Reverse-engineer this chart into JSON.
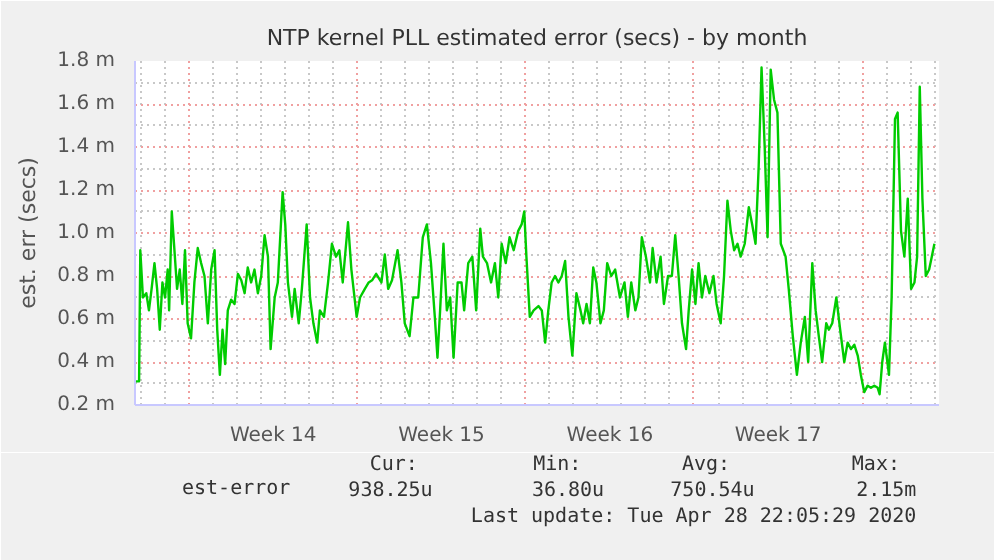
{
  "chart_data": {
    "type": "line",
    "title": "NTP kernel PLL estimated error (secs) - by month",
    "ylabel": "est. err (secs)",
    "xlim": [
      "2020-03-27T18:00",
      "2020-04-30T04:34"
    ],
    "ylim": [
      0.2,
      1.8
    ],
    "xticks": [
      {
        "value": "2020-03-30",
        "label": null
      },
      {
        "value": "2020-04-02T12:00",
        "label": "Week 14"
      },
      {
        "value": "2020-04-06",
        "label": null
      },
      {
        "value": "2020-04-09T12:00",
        "label": "Week 15"
      },
      {
        "value": "2020-04-13",
        "label": null
      },
      {
        "value": "2020-04-16T12:00",
        "label": "Week 16"
      },
      {
        "value": "2020-04-20",
        "label": null
      },
      {
        "value": "2020-04-23T12:00",
        "label": "Week 17"
      },
      {
        "value": "2020-04-27",
        "label": null
      }
    ],
    "yticks": [
      {
        "value": 0.2,
        "label": "0.2 m"
      },
      {
        "value": 0.4,
        "label": "0.4 m"
      },
      {
        "value": 0.6,
        "label": "0.6 m"
      },
      {
        "value": 0.8,
        "label": "0.8 m"
      },
      {
        "value": 1.0,
        "label": "1.0 m"
      },
      {
        "value": 1.2,
        "label": "1.2 m"
      },
      {
        "value": 1.4,
        "label": "1.4 m"
      },
      {
        "value": 1.6,
        "label": "1.6 m"
      },
      {
        "value": 1.8,
        "label": "1.8 m"
      }
    ],
    "grid": true,
    "legend": "bottom left",
    "marker": "none",
    "line_style": "solid",
    "annotations": [
      "Cur:",
      "Min:",
      "Avg:",
      "Max:",
      "938.25u",
      "36.80u",
      "750.54u",
      "2.15m",
      "Last update: Tue Apr 28 22:05:29 2020"
    ],
    "series": [
      {
        "name": "est-error",
        "color": "#00cc00",
        "x": [
          "2020-03-27T18:00",
          "2020-03-27T22:05",
          "2020-03-27T23:17",
          "2020-03-28T01:55",
          "2020-03-28T05:17",
          "2020-03-28T07:55",
          "2020-03-28T10:34",
          "2020-03-28T13:26",
          "2020-03-28T16:05",
          "2020-03-28T18:43",
          "2020-03-28T21:22",
          "2020-03-29T00:00",
          "2020-03-29T02:38",
          "2020-03-29T04:05",
          "2020-03-29T06:43",
          "2020-03-29T09:22",
          "2020-03-29T12:00",
          "2020-03-29T14:38",
          "2020-03-29T17:17",
          "2020-03-29T19:55",
          "2020-03-29T22:34",
          "2020-03-30T01:55",
          "2020-03-30T05:17",
          "2020-03-30T08:38",
          "2020-03-30T12:00",
          "2020-03-30T15:22",
          "2020-03-30T18:43",
          "2020-03-30T22:05",
          "2020-03-31T01:26",
          "2020-03-31T04:05",
          "2020-03-31T06:43",
          "2020-03-31T09:22",
          "2020-03-31T12:00",
          "2020-03-31T14:38",
          "2020-03-31T18:00",
          "2020-03-31T21:22",
          "2020-04-01T00:43",
          "2020-04-01T04:05",
          "2020-04-01T07:26",
          "2020-04-01T10:34",
          "2020-04-01T13:55",
          "2020-04-01T17:17",
          "2020-04-01T20:38",
          "2020-04-02T00:00",
          "2020-04-02T03:22",
          "2020-04-02T06:43",
          "2020-04-02T09:22",
          "2020-04-02T13:26",
          "2020-04-02T16:34",
          "2020-04-02T21:22",
          "2020-04-03T00:00",
          "2020-04-03T02:38",
          "2020-04-03T06:43",
          "2020-04-03T09:22",
          "2020-04-03T13:26",
          "2020-04-03T16:34",
          "2020-04-03T21:22",
          "2020-04-04T00:43",
          "2020-04-04T04:05",
          "2020-04-04T07:55",
          "2020-04-04T10:34",
          "2020-04-04T14:38",
          "2020-04-04T18:43",
          "2020-04-04T22:34",
          "2020-04-05T02:38",
          "2020-04-05T06:00",
          "2020-04-05T09:22",
          "2020-04-05T14:38",
          "2020-04-05T18:00",
          "2020-04-05T23:17",
          "2020-04-06T02:38",
          "2020-04-06T07:26",
          "2020-04-06T11:17",
          "2020-04-06T14:38",
          "2020-04-06T18:43",
          "2020-04-07T00:00",
          "2020-04-07T03:22",
          "2020-04-07T06:43",
          "2020-04-07T10:34",
          "2020-04-07T16:05",
          "2020-04-07T19:55",
          "2020-04-07T23:17",
          "2020-04-08T04:05",
          "2020-04-08T07:55",
          "2020-04-08T12:43",
          "2020-04-08T17:17",
          "2020-04-08T21:22",
          "2020-04-09T01:26",
          "2020-04-09T05:17",
          "2020-04-09T07:55",
          "2020-04-09T10:34",
          "2020-04-09T13:55",
          "2020-04-09T17:17",
          "2020-04-09T20:38",
          "2020-04-10T00:00",
          "2020-04-10T04:05",
          "2020-04-10T07:55",
          "2020-04-10T10:34",
          "2020-04-10T14:38",
          "2020-04-10T18:43",
          "2020-04-10T22:34",
          "2020-04-11T02:38",
          "2020-04-11T05:17",
          "2020-04-11T09:22",
          "2020-04-11T13:26",
          "2020-04-11T17:17",
          "2020-04-11T20:38",
          "2020-04-12T00:00",
          "2020-04-12T04:05",
          "2020-04-12T07:55",
          "2020-04-12T12:00",
          "2020-04-12T16:34",
          "2020-04-12T19:55",
          "2020-04-12T22:34",
          "2020-04-13T00:43",
          "2020-04-13T04:05",
          "2020-04-13T07:55",
          "2020-04-13T12:43",
          "2020-04-13T16:05",
          "2020-04-13T19:26",
          "2020-04-13T22:34",
          "2020-04-14T01:55",
          "2020-04-14T05:17",
          "2020-04-14T08:38",
          "2020-04-14T12:00",
          "2020-04-14T15:22",
          "2020-04-14T18:43",
          "2020-04-14T22:34",
          "2020-04-15T02:38",
          "2020-04-15T06:43",
          "2020-04-15T09:22",
          "2020-04-15T12:43",
          "2020-04-15T16:05",
          "2020-04-15T19:26",
          "2020-04-15T22:34",
          "2020-04-16T02:38",
          "2020-04-16T06:00",
          "2020-04-16T09:22",
          "2020-04-16T13:26",
          "2020-04-16T17:17",
          "2020-04-16T22:05",
          "2020-04-17T02:38",
          "2020-04-17T06:00",
          "2020-04-17T09:22",
          "2020-04-17T13:26",
          "2020-04-17T16:34",
          "2020-04-17T19:55",
          "2020-04-18T00:00",
          "2020-04-18T04:05",
          "2020-04-18T06:43",
          "2020-04-18T10:34",
          "2020-04-18T14:38",
          "2020-04-18T18:00",
          "2020-04-18T22:05",
          "2020-04-19T01:55",
          "2020-04-19T05:17",
          "2020-04-19T08:38",
          "2020-04-19T12:00",
          "2020-04-19T16:05",
          "2020-04-19T18:43",
          "2020-04-19T22:05",
          "2020-04-20T01:26",
          "2020-04-20T04:34",
          "2020-04-20T07:55",
          "2020-04-20T11:17",
          "2020-04-20T15:22",
          "2020-04-20T19:26",
          "2020-04-20T22:34",
          "2020-04-21T02:38",
          "2020-04-21T06:00",
          "2020-04-21T09:22",
          "2020-04-21T12:43",
          "2020-04-21T16:05",
          "2020-04-21T19:26",
          "2020-04-21T22:34",
          "2020-04-22T02:38",
          "2020-04-22T06:43",
          "2020-04-22T10:05",
          "2020-04-22T13:26",
          "2020-04-22T16:34",
          "2020-04-22T19:26",
          "2020-04-22T22:34",
          "2020-04-23T01:26",
          "2020-04-23T04:34",
          "2020-04-23T07:55",
          "2020-04-23T11:17",
          "2020-04-23T14:38",
          "2020-04-23T19:26",
          "2020-04-23T22:34",
          "2020-04-24T02:38",
          "2020-04-24T06:43",
          "2020-04-24T10:34",
          "2020-04-24T14:38",
          "2020-04-24T18:00",
          "2020-04-24T22:05",
          "2020-04-25T01:26",
          "2020-04-25T04:34",
          "2020-04-25T07:55",
          "2020-04-25T12:00",
          "2020-04-25T14:38",
          "2020-04-25T18:00",
          "2020-04-25T22:05",
          "2020-04-26T01:55",
          "2020-04-26T06:00",
          "2020-04-26T09:22",
          "2020-04-26T12:43",
          "2020-04-26T16:05",
          "2020-04-26T19:26",
          "2020-04-26T22:34",
          "2020-04-27T01:55",
          "2020-04-27T05:17",
          "2020-04-27T08:38",
          "2020-04-27T12:00",
          "2020-04-27T15:22",
          "2020-04-27T17:17",
          "2020-04-27T19:55",
          "2020-04-27T22:34",
          "2020-04-28T02:38",
          "2020-04-28T05:17",
          "2020-04-28T08:38",
          "2020-04-28T11:17",
          "2020-04-28T14:38",
          "2020-04-28T18:00",
          "2020-04-28T21:22",
          "2020-04-29T00:43",
          "2020-04-29T04:05",
          "2020-04-29T06:43",
          "2020-04-29T09:22",
          "2020-04-29T12:00",
          "2020-04-29T15:22",
          "2020-04-29T18:43",
          "2020-04-29T21:22",
          "2020-04-30T00:00"
        ],
        "values": [
          0.31,
          0.31,
          0.92,
          0.7,
          0.72,
          0.64,
          0.74,
          0.86,
          0.74,
          0.55,
          0.77,
          0.7,
          0.83,
          0.64,
          1.1,
          0.92,
          0.74,
          0.83,
          0.67,
          0.92,
          0.58,
          0.51,
          0.77,
          0.93,
          0.86,
          0.8,
          0.58,
          0.83,
          0.92,
          0.55,
          0.34,
          0.55,
          0.39,
          0.64,
          0.69,
          0.67,
          0.81,
          0.78,
          0.72,
          0.84,
          0.77,
          0.83,
          0.72,
          0.8,
          0.99,
          0.89,
          0.46,
          0.7,
          0.77,
          1.19,
          1.04,
          0.77,
          0.61,
          0.74,
          0.58,
          0.74,
          1.04,
          0.7,
          0.58,
          0.49,
          0.64,
          0.61,
          0.77,
          0.95,
          0.89,
          0.92,
          0.77,
          1.05,
          0.83,
          0.61,
          0.7,
          0.74,
          0.77,
          0.78,
          0.81,
          0.77,
          0.9,
          0.74,
          0.78,
          0.92,
          0.77,
          0.58,
          0.52,
          0.7,
          0.7,
          0.98,
          1.04,
          0.86,
          0.61,
          0.42,
          0.64,
          0.95,
          0.64,
          0.7,
          0.42,
          0.77,
          0.77,
          0.64,
          0.86,
          0.89,
          0.64,
          1.02,
          0.89,
          0.86,
          0.77,
          0.86,
          0.7,
          0.95,
          0.86,
          0.98,
          0.92,
          1.01,
          1.04,
          1.1,
          0.89,
          0.61,
          0.64,
          0.66,
          0.64,
          0.49,
          0.64,
          0.77,
          0.8,
          0.77,
          0.8,
          0.87,
          0.61,
          0.43,
          0.72,
          0.64,
          0.58,
          0.67,
          0.58,
          0.84,
          0.77,
          0.58,
          0.64,
          0.86,
          0.8,
          0.83,
          0.7,
          0.77,
          0.61,
          0.77,
          0.64,
          0.7,
          0.98,
          0.89,
          0.77,
          0.93,
          0.77,
          0.89,
          0.67,
          0.8,
          0.8,
          0.99,
          0.8,
          0.58,
          0.46,
          0.64,
          0.83,
          0.67,
          0.86,
          0.7,
          0.8,
          0.72,
          0.8,
          0.67,
          0.58,
          0.8,
          1.15,
          1.01,
          0.92,
          0.95,
          0.89,
          0.95,
          1.12,
          1.04,
          0.95,
          1.31,
          1.77,
          1.4,
          0.98,
          1.76,
          1.62,
          1.56,
          0.95,
          0.89,
          0.74,
          0.52,
          0.34,
          0.49,
          0.61,
          0.4,
          0.86,
          0.64,
          0.52,
          0.4,
          0.58,
          0.55,
          0.58,
          0.7,
          0.55,
          0.4,
          0.49,
          0.46,
          0.48,
          0.43,
          0.34,
          0.26,
          0.29,
          0.28,
          0.29,
          0.28,
          0.25,
          0.4,
          0.49,
          0.34,
          0.7,
          1.53,
          1.56,
          1.01,
          0.89,
          1.16,
          0.74,
          0.77,
          0.89,
          1.68,
          1.16,
          0.8,
          0.83,
          0.89,
          0.95
        ]
      }
    ]
  }
}
